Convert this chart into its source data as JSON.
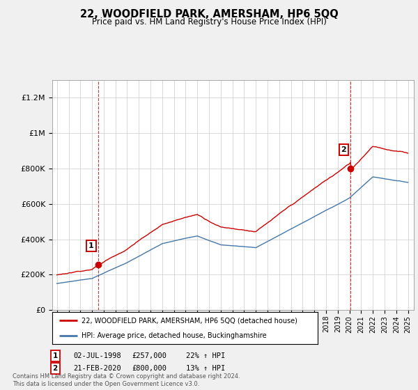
{
  "title": "22, WOODFIELD PARK, AMERSHAM, HP6 5QQ",
  "subtitle": "Price paid vs. HM Land Registry's House Price Index (HPI)",
  "sale1_date": "02-JUL-1998",
  "sale1_price": 257000,
  "sale1_hpi": "22% ↑ HPI",
  "sale2_date": "21-FEB-2020",
  "sale2_price": 800000,
  "sale2_hpi": "13% ↑ HPI",
  "legend_line1": "22, WOODFIELD PARK, AMERSHAM, HP6 5QQ (detached house)",
  "legend_line2": "HPI: Average price, detached house, Buckinghamshire",
  "footnote": "Contains HM Land Registry data © Crown copyright and database right 2024.\nThis data is licensed under the Open Government Licence v3.0.",
  "line_color_red": "#cc0000",
  "line_color_blue": "#4477aa",
  "background_color": "#f0f0f0",
  "plot_bg_color": "#ffffff",
  "ylim": [
    0,
    1300000
  ],
  "yticks": [
    0,
    200000,
    400000,
    600000,
    800000,
    1000000,
    1200000
  ],
  "ytick_labels": [
    "£0",
    "£200K",
    "£400K",
    "£600K",
    "£800K",
    "£1M",
    "£1.2M"
  ],
  "xstart": 1995,
  "xend": 2025
}
